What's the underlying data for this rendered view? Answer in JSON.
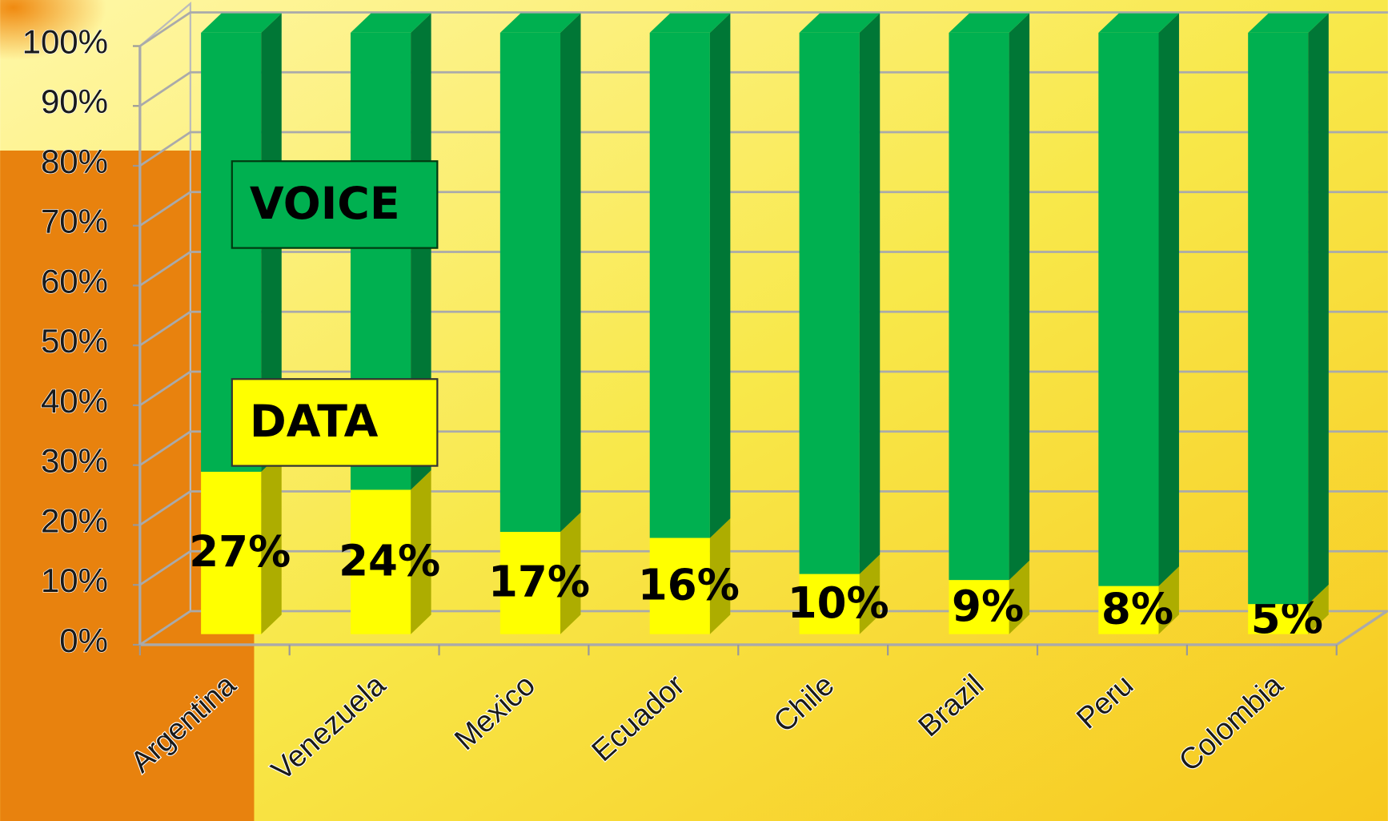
{
  "chart_data": {
    "type": "stacked_bar",
    "categories": [
      "Argentina",
      "Venezuela",
      "Mexico",
      "Ecuador",
      "Chile",
      "Brazil",
      "Peru",
      "Colombia"
    ],
    "series": [
      {
        "name": "DATA",
        "color": "#ffff00",
        "values": [
          27,
          24,
          17,
          16,
          10,
          9,
          8,
          5
        ],
        "value_labels": [
          "27%",
          "24%",
          "17%",
          "16%",
          "10%",
          "9%",
          "8%",
          "5%"
        ]
      },
      {
        "name": "VOICE",
        "color": "#00b050",
        "values": [
          73,
          76,
          83,
          84,
          90,
          91,
          92,
          95
        ]
      }
    ],
    "ylim": [
      0,
      100
    ],
    "yticks": [
      {
        "value": 0,
        "label": "0%"
      },
      {
        "value": 10,
        "label": "10%"
      },
      {
        "value": 20,
        "label": "20%"
      },
      {
        "value": 30,
        "label": "30%"
      },
      {
        "value": 40,
        "label": "40%"
      },
      {
        "value": 50,
        "label": "50%"
      },
      {
        "value": 60,
        "label": "60%"
      },
      {
        "value": 70,
        "label": "70%"
      },
      {
        "value": 80,
        "label": "80%"
      },
      {
        "value": 90,
        "label": "90%"
      },
      {
        "value": 100,
        "label": "100%"
      }
    ],
    "grid": true
  }
}
